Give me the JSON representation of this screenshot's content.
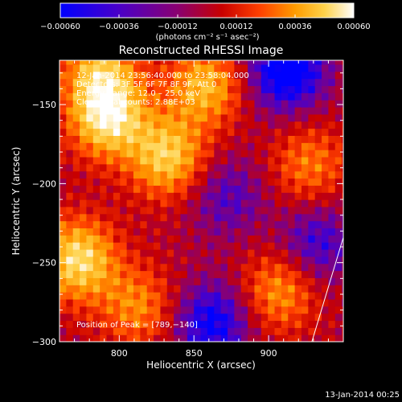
{
  "chart_data": {
    "type": "heatmap",
    "title": "Reconstructed RHESSI Image",
    "xlabel": "Heliocentric X (arcsec)",
    "ylabel": "Heliocentric Y (arcsec)",
    "xlim": [
      760,
      950
    ],
    "ylim": [
      -300,
      -122
    ],
    "x_ticks": [
      "800",
      "850",
      "900"
    ],
    "x_tick_values": [
      800,
      850,
      900
    ],
    "y_ticks": [
      "−150",
      "−200",
      "−250",
      "−300"
    ],
    "y_tick_values": [
      -150,
      -200,
      -250,
      -300
    ],
    "colorbar": {
      "ticks": [
        "−0.00060",
        "−0.00036",
        "−0.00012",
        "0.00012",
        "0.00036",
        "0.00060"
      ],
      "tick_values": [
        -0.0006,
        -0.00036,
        -0.00012,
        0.00012,
        0.00036,
        0.0006
      ],
      "range": [
        -0.0006,
        0.0006
      ],
      "unit_label": "(photons cm⁻² s⁻¹ asec⁻²)",
      "colormap": [
        "#0000ff",
        "#4a00c8",
        "#8a0070",
        "#c80000",
        "#ff4000",
        "#ff9c00",
        "#ffd24a",
        "#ffffff"
      ]
    },
    "annotations": [
      "12‑Jan‑2014 23:56:40.000 to 23:58:04.000",
      "Detectors: 3F 5F 6F 7F 8F 9F, Att 0",
      "Energy Range: 12.0 – 25.0 keV",
      "Clean  Total counts: 2.88E+03"
    ],
    "peak_label": "Position of Peak = [789,−140]",
    "peak_position": [
      789,
      -140
    ],
    "timestamp": "13‑Jan‑2014 00:25",
    "emission_regions": [
      {
        "x": 790,
        "y": -160,
        "relative_intensity": 1.0
      },
      {
        "x": 770,
        "y": -250,
        "relative_intensity": 0.95
      },
      {
        "x": 830,
        "y": -185,
        "relative_intensity": 0.85
      },
      {
        "x": 855,
        "y": -140,
        "relative_intensity": 0.75
      },
      {
        "x": 785,
        "y": -130,
        "relative_intensity": 0.7
      },
      {
        "x": 905,
        "y": -270,
        "relative_intensity": 0.6
      },
      {
        "x": 810,
        "y": -280,
        "relative_intensity": 0.55
      },
      {
        "x": 925,
        "y": -190,
        "relative_intensity": 0.5
      }
    ],
    "minimum_regions": [
      {
        "x": 910,
        "y": -130,
        "relative_intensity": -0.9
      },
      {
        "x": 860,
        "y": -290,
        "relative_intensity": -0.7
      },
      {
        "x": 930,
        "y": -240,
        "relative_intensity": -0.5
      },
      {
        "x": 870,
        "y": -210,
        "relative_intensity": -0.4
      }
    ]
  }
}
